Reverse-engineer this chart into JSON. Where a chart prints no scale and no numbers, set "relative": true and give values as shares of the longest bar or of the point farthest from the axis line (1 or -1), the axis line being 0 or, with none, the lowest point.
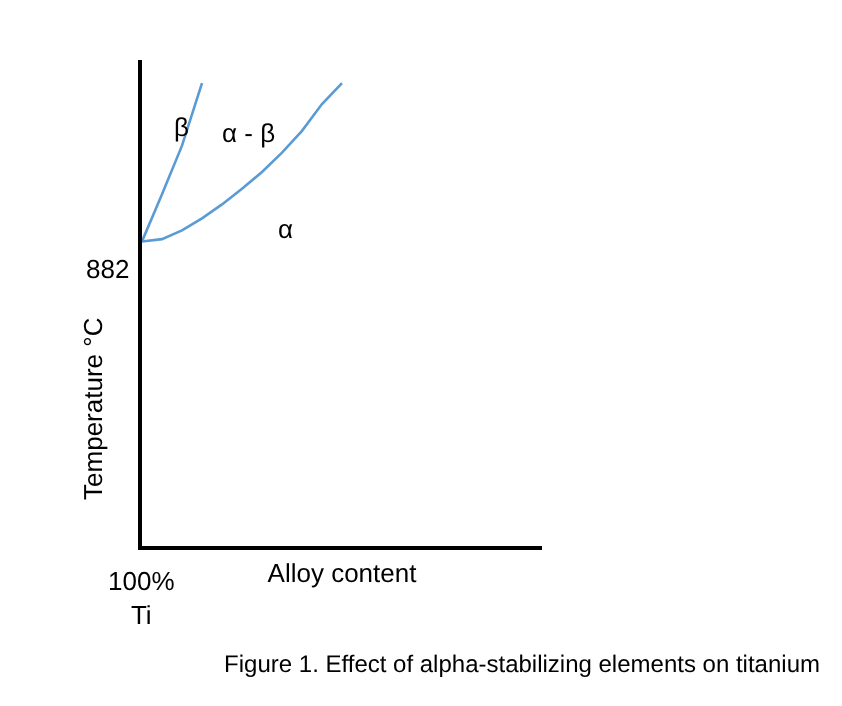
{
  "chart_data": {
    "type": "line",
    "relative": true,
    "title": "Figure 1. Effect of alpha-stabilizing elements on titanium",
    "xlabel": "Alloy content",
    "ylabel": "Temperature °C",
    "categories": [
      null,
      null,
      null,
      null,
      null,
      null,
      null,
      null,
      null,
      null,
      null,
      null,
      null,
      null,
      null,
      null,
      null,
      null,
      null,
      null,
      null
    ],
    "series": [
      {
        "color": "#5b9bd5",
        "values": [
          0.658,
          0.76,
          0.865,
          1.0,
          null,
          null,
          null,
          null,
          null,
          null,
          null,
          null,
          null,
          null,
          null,
          null,
          null,
          null,
          null,
          null,
          null
        ]
      },
      {
        "color": "#5b9bd5",
        "values": [
          0.658,
          0.663,
          0.682,
          0.708,
          0.738,
          0.772,
          0.808,
          0.85,
          0.897,
          0.955,
          1.0,
          null,
          null,
          null,
          null,
          null,
          null,
          null,
          null,
          null,
          null
        ]
      }
    ],
    "annotations": [
      "882",
      "100%\nTi",
      "β",
      "α - β",
      "α"
    ],
    "grid": false,
    "marker": "none",
    "line_style": "solid"
  }
}
